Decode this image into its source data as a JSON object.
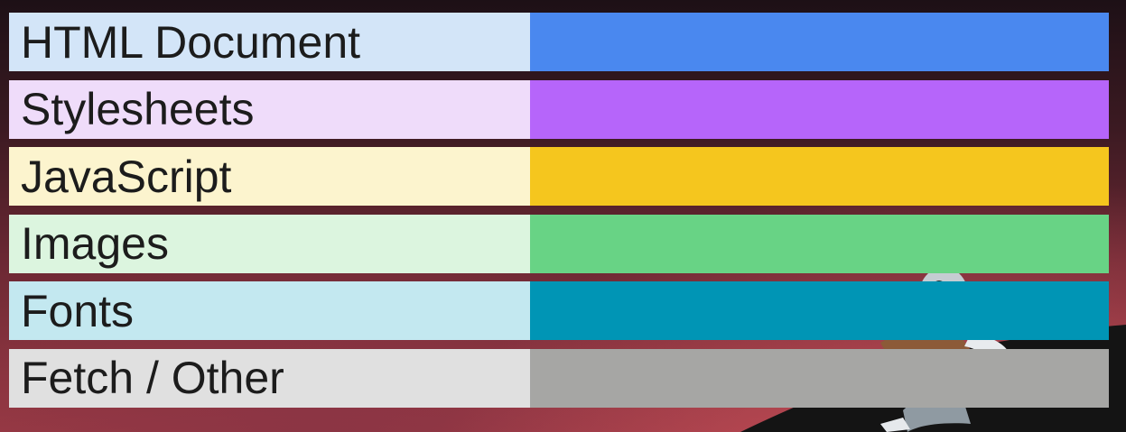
{
  "legend": {
    "items": [
      {
        "key": "html",
        "label": "HTML Document",
        "light": "#d3e5f8",
        "color": "#4a88ef"
      },
      {
        "key": "css",
        "label": "Stylesheets",
        "light": "#efdcfa",
        "color": "#b665fa"
      },
      {
        "key": "js",
        "label": "JavaScript",
        "light": "#fcf4ce",
        "color": "#f5c61e"
      },
      {
        "key": "images",
        "label": "Images",
        "light": "#dcf5df",
        "color": "#68d385"
      },
      {
        "key": "fonts",
        "label": "Fonts",
        "light": "#c3e8f0",
        "color": "#0095b5"
      },
      {
        "key": "other",
        "label": "Fetch / Other",
        "light": "#e0e0e0",
        "color": "#a6a6a4"
      }
    ]
  },
  "background": {
    "illustration": "mascot-illustration"
  }
}
